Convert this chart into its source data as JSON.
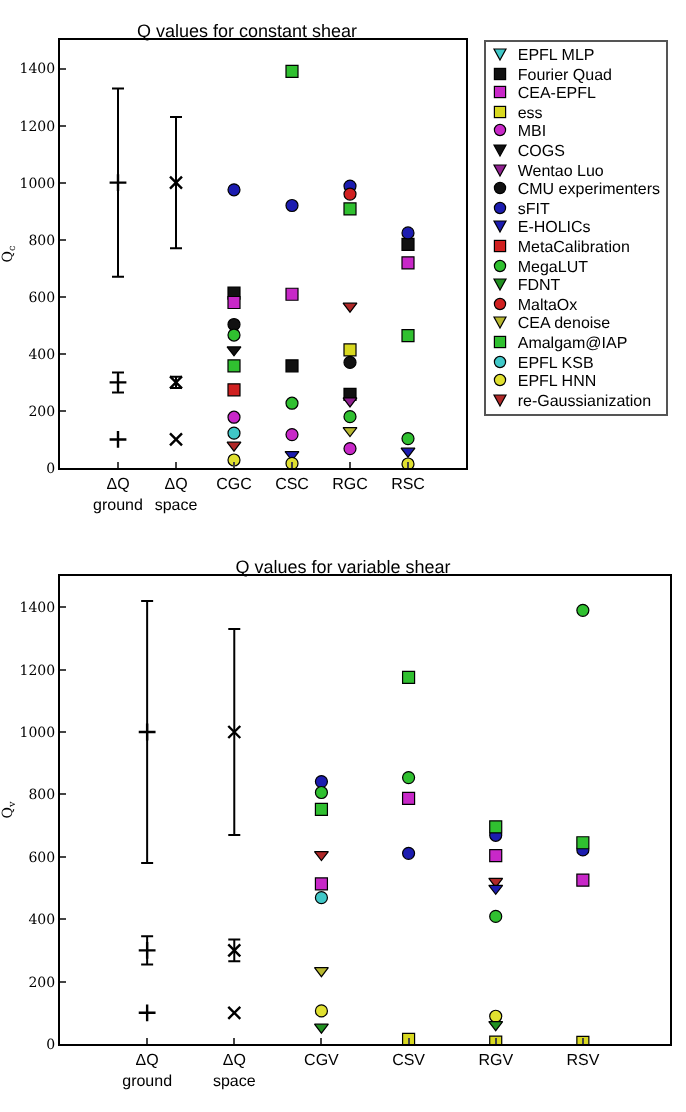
{
  "chart_data": [
    {
      "type": "scatter",
      "title": "Q values for constant shear",
      "ylabel": "Q$_{c}$",
      "categories": [
        "ΔQ\nground",
        "ΔQ\nspace",
        "CGC",
        "CSC",
        "RGC",
        "RSC"
      ],
      "ylim": [
        0,
        1500
      ],
      "yticks": [
        0,
        200,
        400,
        600,
        800,
        1000,
        1200,
        1400
      ],
      "grid": false,
      "legend": "top right",
      "series": [
        {
          "color": "#000000",
          "marker": "cross",
          "values": [
            100,
            null,
            null,
            null,
            null,
            null
          ]
        },
        {
          "color": "#000000",
          "marker": "cross",
          "values": [
            300,
            null,
            null,
            null,
            null,
            null
          ],
          "errors": [
            35,
            null,
            null,
            null,
            null,
            null
          ]
        },
        {
          "color": "#000000",
          "marker": "cross",
          "values": [
            1000,
            null,
            null,
            null,
            null,
            null
          ],
          "errors": [
            330,
            null,
            null,
            null,
            null,
            null
          ]
        },
        {
          "color": "#000000",
          "marker": "x",
          "values": [
            null,
            100,
            null,
            null,
            null,
            null
          ]
        },
        {
          "color": "#000000",
          "marker": "x",
          "values": [
            null,
            300,
            null,
            null,
            null,
            null
          ],
          "errors": [
            null,
            20,
            null,
            null,
            null,
            null
          ]
        },
        {
          "color": "#000000",
          "marker": "x",
          "values": [
            null,
            1000,
            null,
            null,
            null,
            null
          ],
          "errors": [
            null,
            230,
            null,
            null,
            null,
            null
          ]
        },
        {
          "name": "EPFL MLP",
          "color": "#40c8c8",
          "marker": "triangle-down",
          "values": [
            null,
            null,
            null,
            null,
            null,
            null
          ]
        },
        {
          "name": "Fourier Quad",
          "color": "#111111",
          "marker": "square",
          "values": [
            null,
            null,
            613,
            358,
            258,
            784
          ]
        },
        {
          "name": "CEA-EPFL",
          "color": "#c828c8",
          "marker": "square",
          "values": [
            null,
            null,
            580,
            609,
            null,
            719
          ]
        },
        {
          "name": "ess",
          "color": "#d8d820",
          "marker": "square",
          "values": [
            null,
            null,
            null,
            null,
            414,
            null
          ]
        },
        {
          "name": "MBI",
          "color": "#c828c8",
          "marker": "circle",
          "values": [
            null,
            null,
            178,
            117,
            68,
            null
          ]
        },
        {
          "name": "COGS",
          "color": "#111111",
          "marker": "triangle-down",
          "values": [
            null,
            null,
            414,
            null,
            null,
            null
          ]
        },
        {
          "name": "Wentao Luo",
          "color": "#902090",
          "marker": "triangle-down",
          "values": [
            null,
            null,
            null,
            null,
            235,
            null
          ]
        },
        {
          "name": "CMU experimenters",
          "color": "#111111",
          "marker": "circle",
          "values": [
            null,
            null,
            503,
            null,
            370,
            null
          ]
        },
        {
          "name": "sFIT",
          "color": "#1c1cb0",
          "marker": "circle",
          "values": [
            null,
            null,
            975,
            920,
            988,
            824
          ]
        },
        {
          "name": "E-HOLICs",
          "color": "#1c1cb0",
          "marker": "triangle-down",
          "values": [
            null,
            null,
            null,
            47,
            null,
            59
          ]
        },
        {
          "name": "MetaCalibration",
          "color": "#d02020",
          "marker": "square",
          "values": [
            null,
            null,
            274,
            null,
            null,
            null
          ]
        },
        {
          "name": "MegaLUT",
          "color": "#30c030",
          "marker": "circle",
          "values": [
            null,
            null,
            466,
            227,
            180,
            103
          ]
        },
        {
          "name": "FDNT",
          "color": "#209020",
          "marker": "triangle-down",
          "values": [
            null,
            null,
            null,
            null,
            null,
            null
          ]
        },
        {
          "name": "MaltaOx",
          "color": "#d02020",
          "marker": "circle",
          "values": [
            null,
            null,
            null,
            null,
            960,
            null
          ]
        },
        {
          "name": "CEA denoise",
          "color": "#b8b830",
          "marker": "triangle-down",
          "values": [
            null,
            null,
            null,
            null,
            131,
            null
          ]
        },
        {
          "name": "Amalgam@IAP",
          "color": "#30c030",
          "marker": "square",
          "values": [
            null,
            null,
            358,
            1390,
            908,
            464
          ]
        },
        {
          "name": "EPFL KSB",
          "color": "#40c8c8",
          "marker": "circle",
          "values": [
            null,
            null,
            122,
            null,
            null,
            null
          ]
        },
        {
          "name": "EPFL HNN",
          "color": "#e0e030",
          "marker": "circle",
          "values": [
            null,
            null,
            28,
            16,
            null,
            14
          ]
        },
        {
          "name": "re-Gaussianization",
          "color": "#b02828",
          "marker": "triangle-down",
          "values": [
            null,
            null,
            80,
            null,
            567,
            null
          ]
        }
      ]
    },
    {
      "type": "scatter",
      "title": "Q values for variable shear",
      "ylabel": "Q$_{v}$",
      "categories": [
        "ΔQ\nground",
        "ΔQ\nspace",
        "CGV",
        "CSV",
        "RGV",
        "RSV"
      ],
      "ylim": [
        0,
        1500
      ],
      "yticks": [
        0,
        200,
        400,
        600,
        800,
        1000,
        1200,
        1400
      ],
      "grid": false,
      "series": [
        {
          "color": "#000000",
          "marker": "cross",
          "values": [
            100,
            null,
            null,
            null,
            null,
            null
          ]
        },
        {
          "color": "#000000",
          "marker": "cross",
          "values": [
            300,
            null,
            null,
            null,
            null,
            null
          ],
          "errors": [
            45,
            null,
            null,
            null,
            null,
            null
          ]
        },
        {
          "color": "#000000",
          "marker": "cross",
          "values": [
            1000,
            null,
            null,
            null,
            null,
            null
          ],
          "errors": [
            420,
            null,
            null,
            null,
            null,
            null
          ]
        },
        {
          "color": "#000000",
          "marker": "x",
          "values": [
            null,
            100,
            null,
            null,
            null,
            null
          ]
        },
        {
          "color": "#000000",
          "marker": "x",
          "values": [
            null,
            300,
            null,
            null,
            null,
            null
          ],
          "errors": [
            null,
            35,
            null,
            null,
            null,
            null
          ]
        },
        {
          "color": "#000000",
          "marker": "x",
          "values": [
            null,
            1000,
            null,
            null,
            null,
            null
          ],
          "errors": [
            null,
            330,
            null,
            null,
            null,
            null
          ]
        },
        {
          "color": "#1c1cb0",
          "marker": "circle",
          "values": [
            null,
            null,
            841,
            611,
            669,
            622
          ]
        },
        {
          "color": "#30c030",
          "marker": "circle",
          "values": [
            null,
            null,
            806,
            854,
            409,
            1390
          ]
        },
        {
          "color": "#30c030",
          "marker": "square",
          "values": [
            null,
            null,
            752,
            1175,
            696,
            645
          ]
        },
        {
          "color": "#b02828",
          "marker": "triangle-down",
          "values": [
            null,
            null,
            607,
            null,
            521,
            null
          ]
        },
        {
          "color": "#c828c8",
          "marker": "square",
          "values": [
            null,
            null,
            513,
            787,
            604,
            525
          ]
        },
        {
          "color": "#40c8c8",
          "marker": "circle",
          "values": [
            null,
            null,
            469,
            null,
            null,
            null
          ]
        },
        {
          "color": "#b8b830",
          "marker": "triangle-down",
          "values": [
            null,
            null,
            235,
            null,
            null,
            null
          ]
        },
        {
          "color": "#e0e030",
          "marker": "circle",
          "values": [
            null,
            null,
            106,
            null,
            89,
            null
          ]
        },
        {
          "color": "#209020",
          "marker": "triangle-down",
          "values": [
            null,
            null,
            54,
            null,
            62,
            null
          ]
        },
        {
          "color": "#1c1cb0",
          "marker": "triangle-down",
          "values": [
            null,
            null,
            null,
            null,
            499,
            null
          ]
        },
        {
          "color": "#d8d820",
          "marker": "square",
          "values": [
            null,
            null,
            null,
            15,
            6,
            5
          ]
        }
      ]
    }
  ]
}
